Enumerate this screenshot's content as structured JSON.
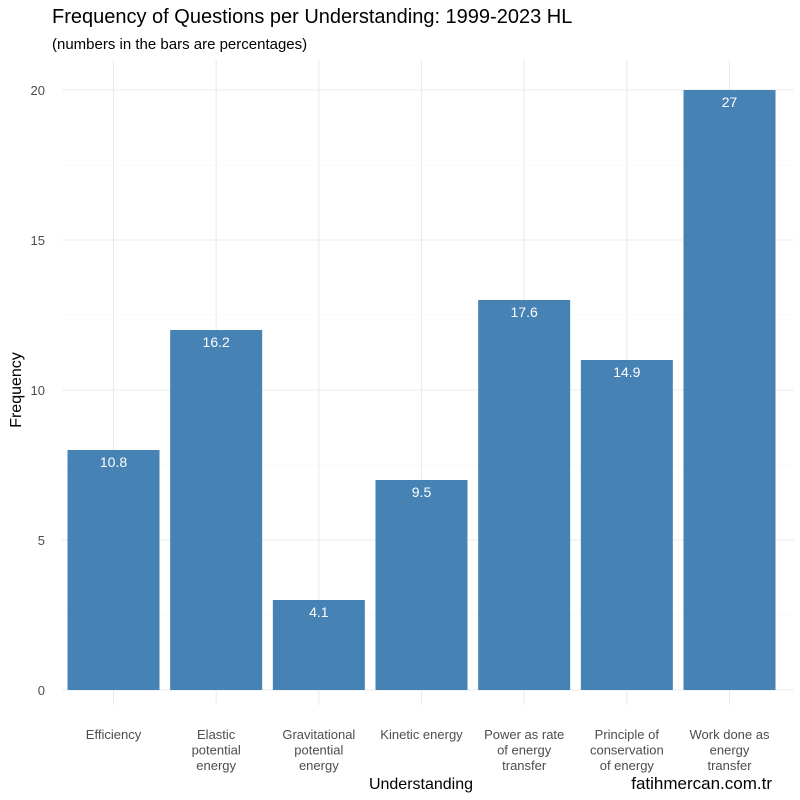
{
  "chart_data": {
    "type": "bar",
    "title": "Frequency of Questions per Understanding: 1999-2023 HL",
    "subtitle": "(numbers in the bars are percentages)",
    "xlabel": "Understanding",
    "ylabel": "Frequency",
    "ylim": [
      0,
      20
    ],
    "yticks": [
      0,
      5,
      10,
      15,
      20
    ],
    "grid": true,
    "bar_color": "#4682b4",
    "categories": [
      [
        "Efficiency"
      ],
      [
        "Elastic",
        "potential",
        "energy"
      ],
      [
        "Gravitational",
        "potential",
        "energy"
      ],
      [
        "Kinetic energy"
      ],
      [
        "Power as rate",
        "of energy",
        "transfer"
      ],
      [
        "Principle of",
        "conservation",
        "of energy"
      ],
      [
        "Work done as",
        "energy",
        "transfer"
      ]
    ],
    "values": [
      8,
      12,
      3,
      7,
      13,
      11,
      20
    ],
    "labels": [
      "10.8",
      "16.2",
      "4.1",
      "9.5",
      "17.6",
      "14.9",
      "27"
    ]
  },
  "credit": "fatihmercan.com.tr"
}
